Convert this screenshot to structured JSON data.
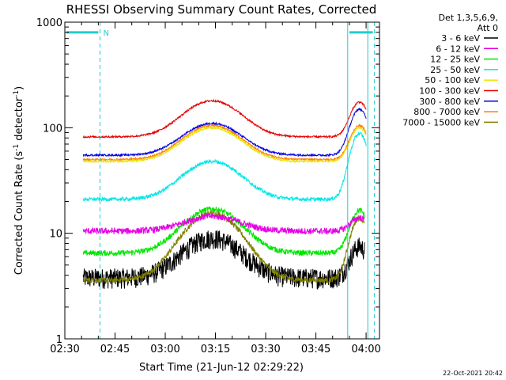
{
  "chart_data": {
    "type": "line",
    "title": "RHESSI Observing Summary Count Rates, Corrected",
    "xlabel": "Start Time (21-Jun-12 02:29:22)",
    "ylabel_main": "Corrected Count Rate (s",
    "ylabel_sup1": "-1",
    "ylabel_mid": " detector",
    "ylabel_sup2": "-1",
    "ylabel_end": ")",
    "y_scale": "log",
    "ylim": [
      1,
      1000
    ],
    "xlim_minutes": [
      0,
      94
    ],
    "x_ticks": [
      {
        "label": "02:30",
        "m": 0
      },
      {
        "label": "02:45",
        "m": 15
      },
      {
        "label": "03:00",
        "m": 30
      },
      {
        "label": "03:15",
        "m": 45
      },
      {
        "label": "03:30",
        "m": 60
      },
      {
        "label": "03:45",
        "m": 75
      },
      {
        "label": "04:00",
        "m": 90
      }
    ],
    "y_ticks": [
      {
        "label": "1",
        "v": 1
      },
      {
        "label": "10",
        "v": 10
      },
      {
        "label": "100",
        "v": 100
      },
      {
        "label": "1000",
        "v": 1000
      }
    ],
    "annotations": {
      "marker_n": "N",
      "bar_value": 800,
      "dashed_lines_m": [
        10.5,
        92.5
      ],
      "solid_lines_m": [
        84.5,
        90.5
      ],
      "bar_spans_m": [
        [
          0.5,
          10
        ],
        [
          85,
          92
        ]
      ],
      "line_color": "#22cccc"
    },
    "legend_title_1": "Det 1,3,5,6,9,",
    "legend_title_2": "Att 0",
    "legend_position": "right",
    "series": [
      {
        "name": "3 - 6 keV",
        "color": "#000000",
        "start_m": 5.5,
        "end_m": 89.5,
        "base": 3.8,
        "peak": 9.0,
        "flare": 7.5,
        "noise": 0.22
      },
      {
        "name": "6 - 12 keV",
        "color": "#e600e6",
        "start_m": 5.5,
        "end_m": 89.5,
        "base": 10.5,
        "peak": 14.5,
        "flare": 14.0,
        "noise": 0.07
      },
      {
        "name": "12 - 25 keV",
        "color": "#00e600",
        "start_m": 5.5,
        "end_m": 89.5,
        "base": 6.5,
        "peak": 17.0,
        "flare": 16.5,
        "noise": 0.06
      },
      {
        "name": "25 - 50 keV",
        "color": "#00e6e6",
        "start_m": 5.5,
        "end_m": 90.0,
        "base": 21.0,
        "peak": 48.0,
        "flare": 88.0,
        "noise": 0.04
      },
      {
        "name": "50 - 100 keV",
        "color": "#e6e600",
        "start_m": 5.5,
        "end_m": 90.0,
        "base": 48.0,
        "peak": 100.0,
        "flare": 100.0,
        "noise": 0.02
      },
      {
        "name": "100 - 300 keV",
        "color": "#e60000",
        "start_m": 5.5,
        "end_m": 90.0,
        "base": 82.0,
        "peak": 180.0,
        "flare": 175.0,
        "noise": 0.02
      },
      {
        "name": "300 - 800 keV",
        "color": "#0000e6",
        "start_m": 5.5,
        "end_m": 90.0,
        "base": 55.0,
        "peak": 110.0,
        "flare": 150.0,
        "noise": 0.02
      },
      {
        "name": "800 - 7000 keV",
        "color": "#ff8000",
        "start_m": 5.5,
        "end_m": 90.0,
        "base": 50.0,
        "peak": 105.0,
        "flare": 105.0,
        "noise": 0.02
      },
      {
        "name": "7000 - 15000 keV",
        "color": "#808000",
        "start_m": 5.5,
        "end_m": 89.5,
        "base": 3.6,
        "peak": 15.5,
        "flare": 14.0,
        "noise": 0.06
      }
    ]
  },
  "footer": {
    "timestamp": "22-Oct-2021 20:42"
  }
}
